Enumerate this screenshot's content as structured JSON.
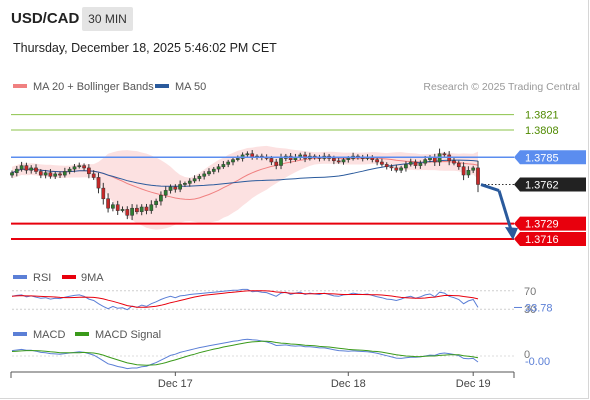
{
  "header": {
    "pair": "USD/CAD",
    "timeframe": "30 MIN",
    "datetime": "Thursday, December 18, 2025 5:46:02 PM CET"
  },
  "legend": {
    "ma20": "MA 20 + Bollinger Bands",
    "ma50": "MA 50",
    "credit": "Research © 2025 Trading Central",
    "rsi": "RSI",
    "rsi_ma": "9MA",
    "macd": "MACD",
    "macd_signal": "MACD Signal"
  },
  "colors": {
    "ma20": "#f08080",
    "ma50": "#2a5a9c",
    "resistance": "#8bc34a",
    "pivot": "#5b8def",
    "support": "#e8000d",
    "arrow": "#2a5a9c",
    "candle_up": "#2e7d32",
    "candle_down": "#c62828"
  },
  "chart_data": {
    "type": "candlestick",
    "ylim": [
      1.37,
      1.3835
    ],
    "levels": [
      {
        "value": 1.3821,
        "label": "1.3821",
        "kind": "resistance"
      },
      {
        "value": 1.3808,
        "label": "1.3808",
        "kind": "resistance"
      },
      {
        "value": 1.3785,
        "label": "1.3785",
        "kind": "pivot"
      },
      {
        "value": 1.3762,
        "label": "1.3762",
        "kind": "last_price"
      },
      {
        "value": 1.3729,
        "label": "1.3729",
        "kind": "support"
      },
      {
        "value": 1.3716,
        "label": "1.3716",
        "kind": "support"
      }
    ],
    "x_ticks": [
      "Dec 17",
      "Dec 18",
      "Dec 19"
    ],
    "close": [
      1.3772,
      1.3775,
      1.3778,
      1.3774,
      1.3776,
      1.3773,
      1.377,
      1.3772,
      1.3769,
      1.3771,
      1.377,
      1.3773,
      1.3775,
      1.3777,
      1.3778,
      1.3776,
      1.3771,
      1.3768,
      1.3759,
      1.375,
      1.3742,
      1.3745,
      1.374,
      1.3741,
      1.3736,
      1.3742,
      1.3739,
      1.3743,
      1.374,
      1.3745,
      1.3748,
      1.3753,
      1.3757,
      1.376,
      1.3758,
      1.3762,
      1.3763,
      1.3765,
      1.3767,
      1.3769,
      1.3771,
      1.3773,
      1.3775,
      1.3777,
      1.3779,
      1.3781,
      1.3783,
      1.3784,
      1.3787,
      1.3788,
      1.3785,
      1.3786,
      1.3785,
      1.3784,
      1.3781,
      1.3778,
      1.3784,
      1.3786,
      1.3783,
      1.3785,
      1.3787,
      1.3784,
      1.3786,
      1.3785,
      1.3784,
      1.3786,
      1.3784,
      1.3782,
      1.3781,
      1.3783,
      1.3784,
      1.3786,
      1.3785,
      1.3784,
      1.3785,
      1.3783,
      1.3781,
      1.3779,
      1.3777,
      1.3776,
      1.3774,
      1.3776,
      1.3779,
      1.3781,
      1.3778,
      1.378,
      1.3783,
      1.3785,
      1.3781,
      1.3788,
      1.3787,
      1.3782,
      1.378,
      1.3777,
      1.377,
      1.3774,
      1.3776,
      1.3762
    ],
    "rsi": {
      "value": "33.78",
      "levels": [
        30,
        70
      ],
      "ylim": [
        0,
        100
      ],
      "values": [
        58,
        60,
        61,
        57,
        59,
        56,
        54,
        55,
        52,
        54,
        53,
        56,
        58,
        60,
        61,
        58,
        52,
        49,
        42,
        36,
        31,
        36,
        32,
        33,
        29,
        37,
        34,
        39,
        36,
        42,
        46,
        51,
        55,
        58,
        55,
        59,
        60,
        62,
        63,
        64,
        65,
        66,
        67,
        68,
        69,
        70,
        71,
        71,
        73,
        73,
        68,
        69,
        67,
        66,
        62,
        58,
        65,
        67,
        62,
        65,
        67,
        62,
        65,
        63,
        62,
        65,
        62,
        59,
        58,
        61,
        62,
        65,
        63,
        62,
        63,
        60,
        57,
        55,
        52,
        51,
        49,
        52,
        56,
        58,
        54,
        57,
        61,
        63,
        57,
        67,
        65,
        58,
        55,
        51,
        42,
        48,
        51,
        34
      ]
    },
    "macd": {
      "value": "-0.00",
      "level": 0,
      "values": [
        0.00018,
        0.0002,
        0.00022,
        0.00019,
        0.00019,
        0.00016,
        0.00012,
        0.00011,
        8e-05,
        7e-05,
        6e-05,
        8e-05,
        0.0001,
        0.00012,
        0.00014,
        0.00012,
        8e-05,
        3e-05,
        -6e-05,
        -0.00016,
        -0.00026,
        -0.0003,
        -0.00035,
        -0.00038,
        -0.00042,
        -0.0004,
        -0.0004,
        -0.00036,
        -0.00034,
        -0.00028,
        -0.00022,
        -0.00014,
        -6e-05,
        2e-05,
        6e-05,
        0.00012,
        0.00016,
        0.0002,
        0.00024,
        0.00028,
        0.00031,
        0.00034,
        0.00037,
        0.0004,
        0.00043,
        0.00046,
        0.00049,
        0.00051,
        0.00054,
        0.00056,
        0.00054,
        0.00053,
        0.0005,
        0.00047,
        0.00042,
        0.00035,
        0.00036,
        0.00037,
        0.00034,
        0.00033,
        0.00034,
        0.00031,
        0.00031,
        0.00029,
        0.00027,
        0.00027,
        0.00024,
        0.00021,
        0.00018,
        0.00017,
        0.00016,
        0.00017,
        0.00016,
        0.00015,
        0.00014,
        0.00012,
        9e-05,
        5e-05,
        1e-05,
        -3e-05,
        -7e-05,
        -8e-05,
        -6e-05,
        -4e-05,
        -4e-05,
        -3e-05,
        0.0,
        3e-05,
        2e-05,
        8e-05,
        0.0001,
        8e-05,
        5e-05,
        1e-05,
        -8e-05,
        -9e-05,
        -8e-05,
        -0.0002
      ],
      "signal": [
        0.00015,
        0.00016,
        0.00017,
        0.00018,
        0.00018,
        0.00018,
        0.00017,
        0.00016,
        0.00014,
        0.00013,
        0.00011,
        0.00011,
        0.00011,
        0.00011,
        0.00011,
        0.00012,
        0.00011,
        0.0001,
        7e-05,
        3e-05,
        -3e-05,
        -8e-05,
        -0.00013,
        -0.00018,
        -0.00023,
        -0.00026,
        -0.00029,
        -0.0003,
        -0.00031,
        -0.0003,
        -0.00029,
        -0.00026,
        -0.00022,
        -0.00017,
        -0.00013,
        -8e-05,
        -3e-05,
        2e-05,
        6e-05,
        0.00011,
        0.00015,
        0.00019,
        0.00023,
        0.00026,
        0.0003,
        0.00033,
        0.00036,
        0.00039,
        0.00042,
        0.00045,
        0.00047,
        0.00048,
        0.00049,
        0.00049,
        0.00048,
        0.00045,
        0.00043,
        0.00042,
        0.0004,
        0.00039,
        0.00038,
        0.00036,
        0.00035,
        0.00034,
        0.00032,
        0.00031,
        0.0003,
        0.00028,
        0.00026,
        0.00024,
        0.00022,
        0.00021,
        0.0002,
        0.00019,
        0.00018,
        0.00016,
        0.00015,
        0.00013,
        0.0001,
        7e-05,
        4e-05,
        2e-05,
        0.0,
        -1e-05,
        -2e-05,
        -2e-05,
        -1e-05,
        0.0,
        0.0,
        2e-05,
        3e-05,
        4e-05,
        4e-05,
        4e-05,
        1e-05,
        -1e-05,
        -3e-05,
        -6e-05
      ]
    }
  }
}
